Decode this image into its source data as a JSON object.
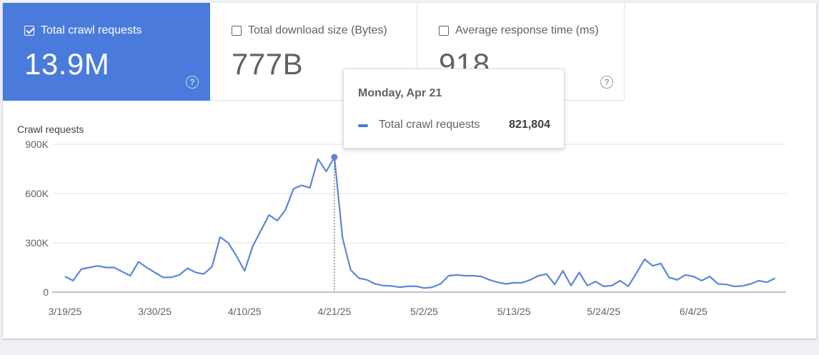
{
  "metrics": [
    {
      "label": "Total crawl requests",
      "value": "13.9M",
      "checked": true
    },
    {
      "label": "Total download size (Bytes)",
      "value": "777B",
      "checked": false
    },
    {
      "label": "Average response time (ms)",
      "value": "918",
      "checked": false
    }
  ],
  "help_glyph": "?",
  "chart_title": "Crawl requests",
  "tooltip": {
    "date": "Monday, Apr 21",
    "series": "Total crawl requests",
    "value": "821,804"
  },
  "colors": {
    "accent": "#4a7bdc",
    "line": "#5b86d8"
  },
  "chart_data": {
    "type": "line",
    "title": "Crawl requests",
    "y_tick_labels": [
      "0",
      "300K",
      "600K",
      "900K"
    ],
    "y_ticks": [
      0,
      300000,
      600000,
      900000
    ],
    "ylim": [
      0,
      900000
    ],
    "x_tick_labels": [
      "3/19/25",
      "3/30/25",
      "4/10/25",
      "4/21/25",
      "5/2/25",
      "5/13/25",
      "5/24/25",
      "6/4/25"
    ],
    "x_start": "3/19/25",
    "x_end": "6/15/25",
    "highlight_date": "4/21/25",
    "grid": true,
    "series": [
      {
        "name": "Total crawl requests",
        "values": [
          95000,
          70000,
          140000,
          150000,
          160000,
          150000,
          150000,
          125000,
          100000,
          185000,
          150000,
          120000,
          90000,
          90000,
          105000,
          145000,
          120000,
          110000,
          155000,
          335000,
          300000,
          220000,
          130000,
          280000,
          375000,
          470000,
          435000,
          500000,
          630000,
          650000,
          635000,
          810000,
          735000,
          821804,
          330000,
          135000,
          85000,
          75000,
          50000,
          40000,
          38000,
          30000,
          35000,
          36000,
          25000,
          30000,
          50000,
          100000,
          105000,
          100000,
          100000,
          95000,
          75000,
          60000,
          50000,
          57000,
          57000,
          75000,
          100000,
          110000,
          47000,
          130000,
          40000,
          120000,
          40000,
          65000,
          35000,
          40000,
          70000,
          35000,
          115000,
          200000,
          160000,
          175000,
          90000,
          75000,
          105000,
          95000,
          70000,
          95000,
          50000,
          47000,
          35000,
          38000,
          50000,
          70000,
          60000,
          85000
        ]
      }
    ]
  }
}
